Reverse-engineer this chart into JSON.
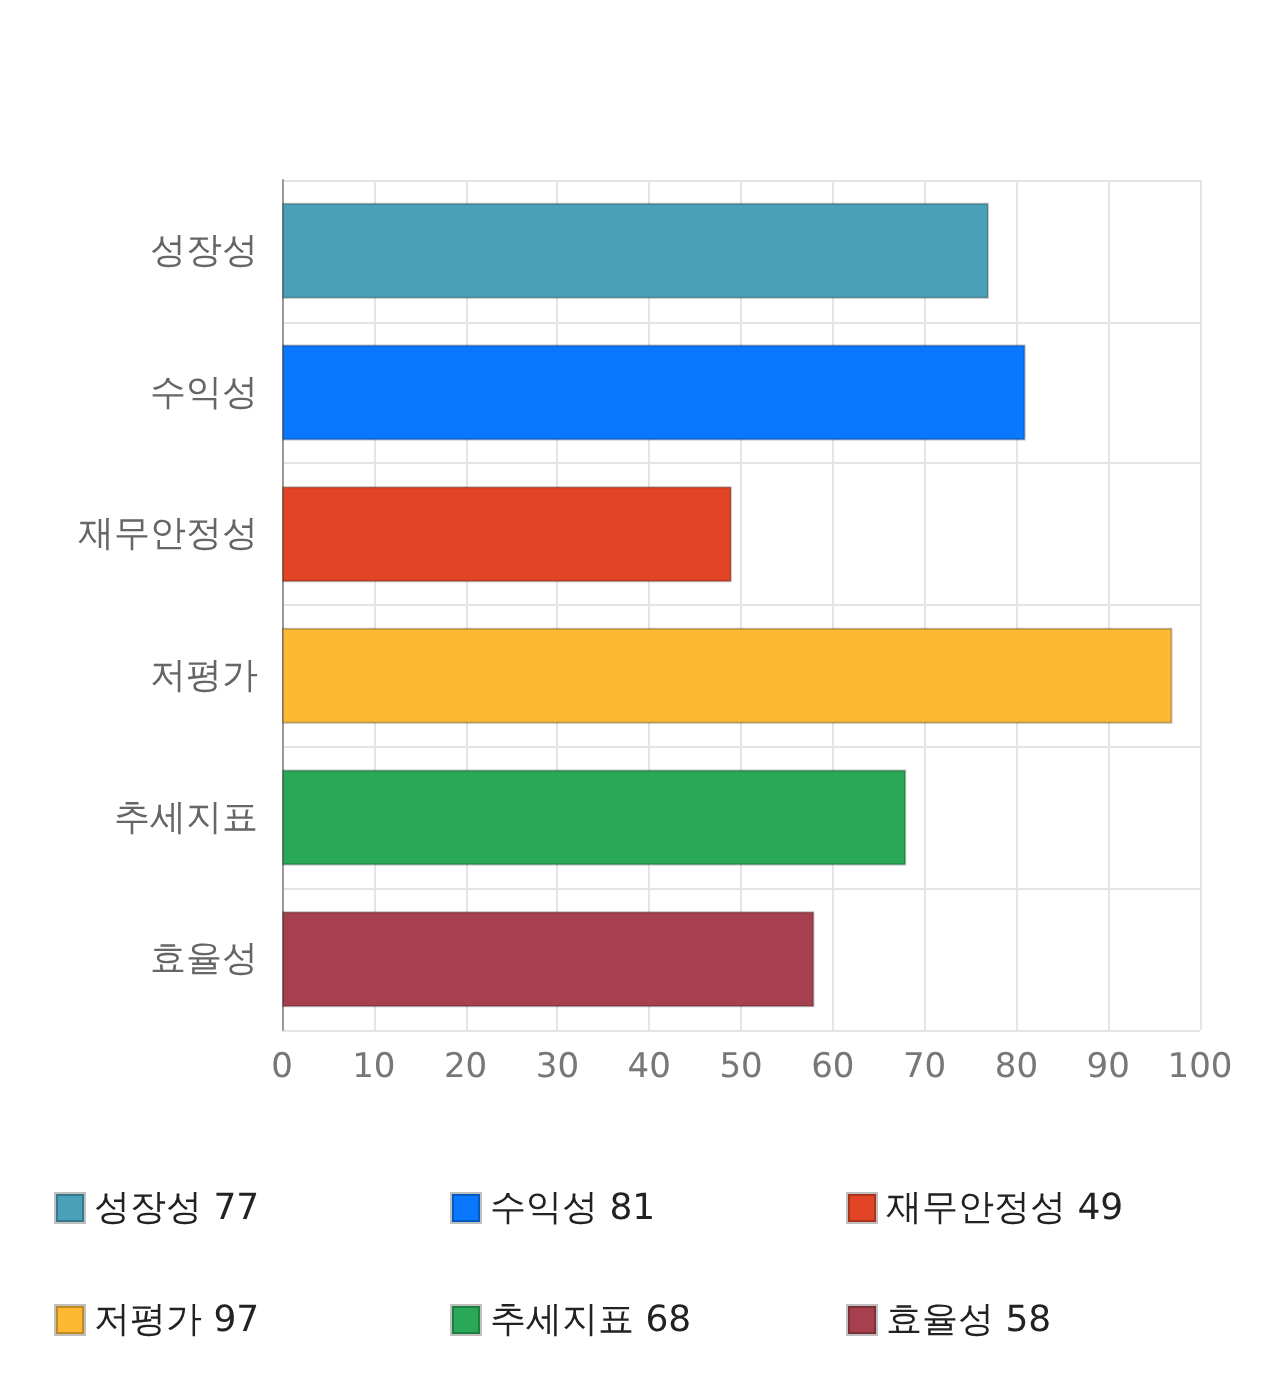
{
  "chart_data": {
    "type": "bar",
    "orientation": "horizontal",
    "stacked": true,
    "categories": [
      "성장성",
      "수익성",
      "재무안정성",
      "저평가",
      "추세지표",
      "효율성"
    ],
    "series": [
      {
        "name": "성장성 77",
        "color": "#4aa0b8",
        "values": [
          77,
          null,
          null,
          null,
          null,
          null
        ]
      },
      {
        "name": "수익성 81",
        "color": "#0a77ff",
        "values": [
          null,
          81,
          null,
          null,
          null,
          null
        ]
      },
      {
        "name": "재무안정성 49",
        "color": "#e24525",
        "values": [
          null,
          null,
          49,
          null,
          null,
          null
        ]
      },
      {
        "name": "저평가 97",
        "color": "#fdb933",
        "values": [
          null,
          null,
          null,
          97,
          null,
          null
        ]
      },
      {
        "name": "추세지표 68",
        "color": "#29a857",
        "values": [
          null,
          null,
          null,
          null,
          68,
          null
        ]
      },
      {
        "name": "효율성 58",
        "color": "#a6404e",
        "values": [
          null,
          null,
          null,
          null,
          null,
          58
        ]
      }
    ],
    "xlim": [
      0,
      100
    ],
    "xticks": [
      0,
      10,
      20,
      30,
      40,
      50,
      60,
      70,
      80,
      90,
      100
    ],
    "grid": true,
    "legend": "bottom"
  }
}
